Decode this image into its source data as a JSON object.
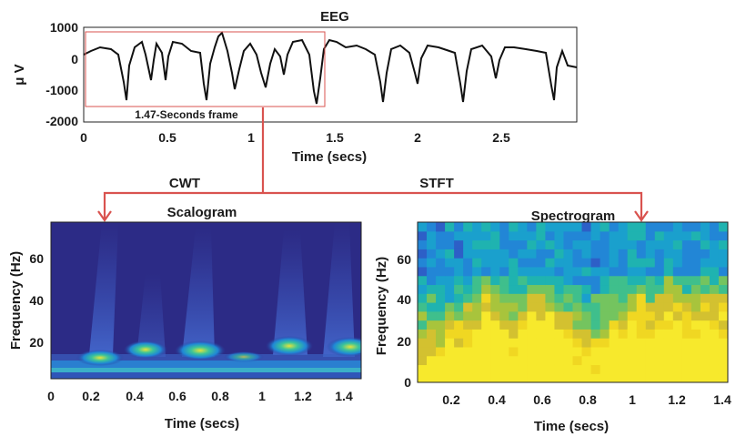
{
  "figure": {
    "eeg": {
      "title": "EEG",
      "ylabel": "μ V",
      "xlabel": "Time (secs)",
      "yticks": [
        "1000",
        "0",
        "-1000",
        "-2000"
      ],
      "xticks": [
        "0",
        "0.5",
        "1",
        "1.5",
        "2",
        "2.5"
      ],
      "frame_label": "1.47-Seconds frame"
    },
    "branches": {
      "left": "CWT",
      "right": "STFT"
    },
    "scalogram": {
      "title": "Scalogram",
      "ylabel": "Frequency (Hz)",
      "xlabel": "Time (secs)",
      "yticks": [
        "60",
        "40",
        "20"
      ],
      "xticks": [
        "0",
        "0.2",
        "0.4",
        "0.6",
        "0.8",
        "1",
        "1.2",
        "1.4"
      ]
    },
    "spectrogram": {
      "title": "Spectrogram",
      "ylabel": "Frequency (Hz)",
      "xlabel": "Time (secs)",
      "yticks": [
        "60",
        "40",
        "20",
        "0"
      ],
      "xticks": [
        "0.2",
        "0.4",
        "0.6",
        "0.8",
        "1",
        "1.2",
        "1.4"
      ]
    },
    "colors": {
      "arrow": "#d9534f",
      "frame": "#d9534f",
      "parula_low": "#352a87",
      "parula_high": "#f9fb0e"
    }
  }
}
